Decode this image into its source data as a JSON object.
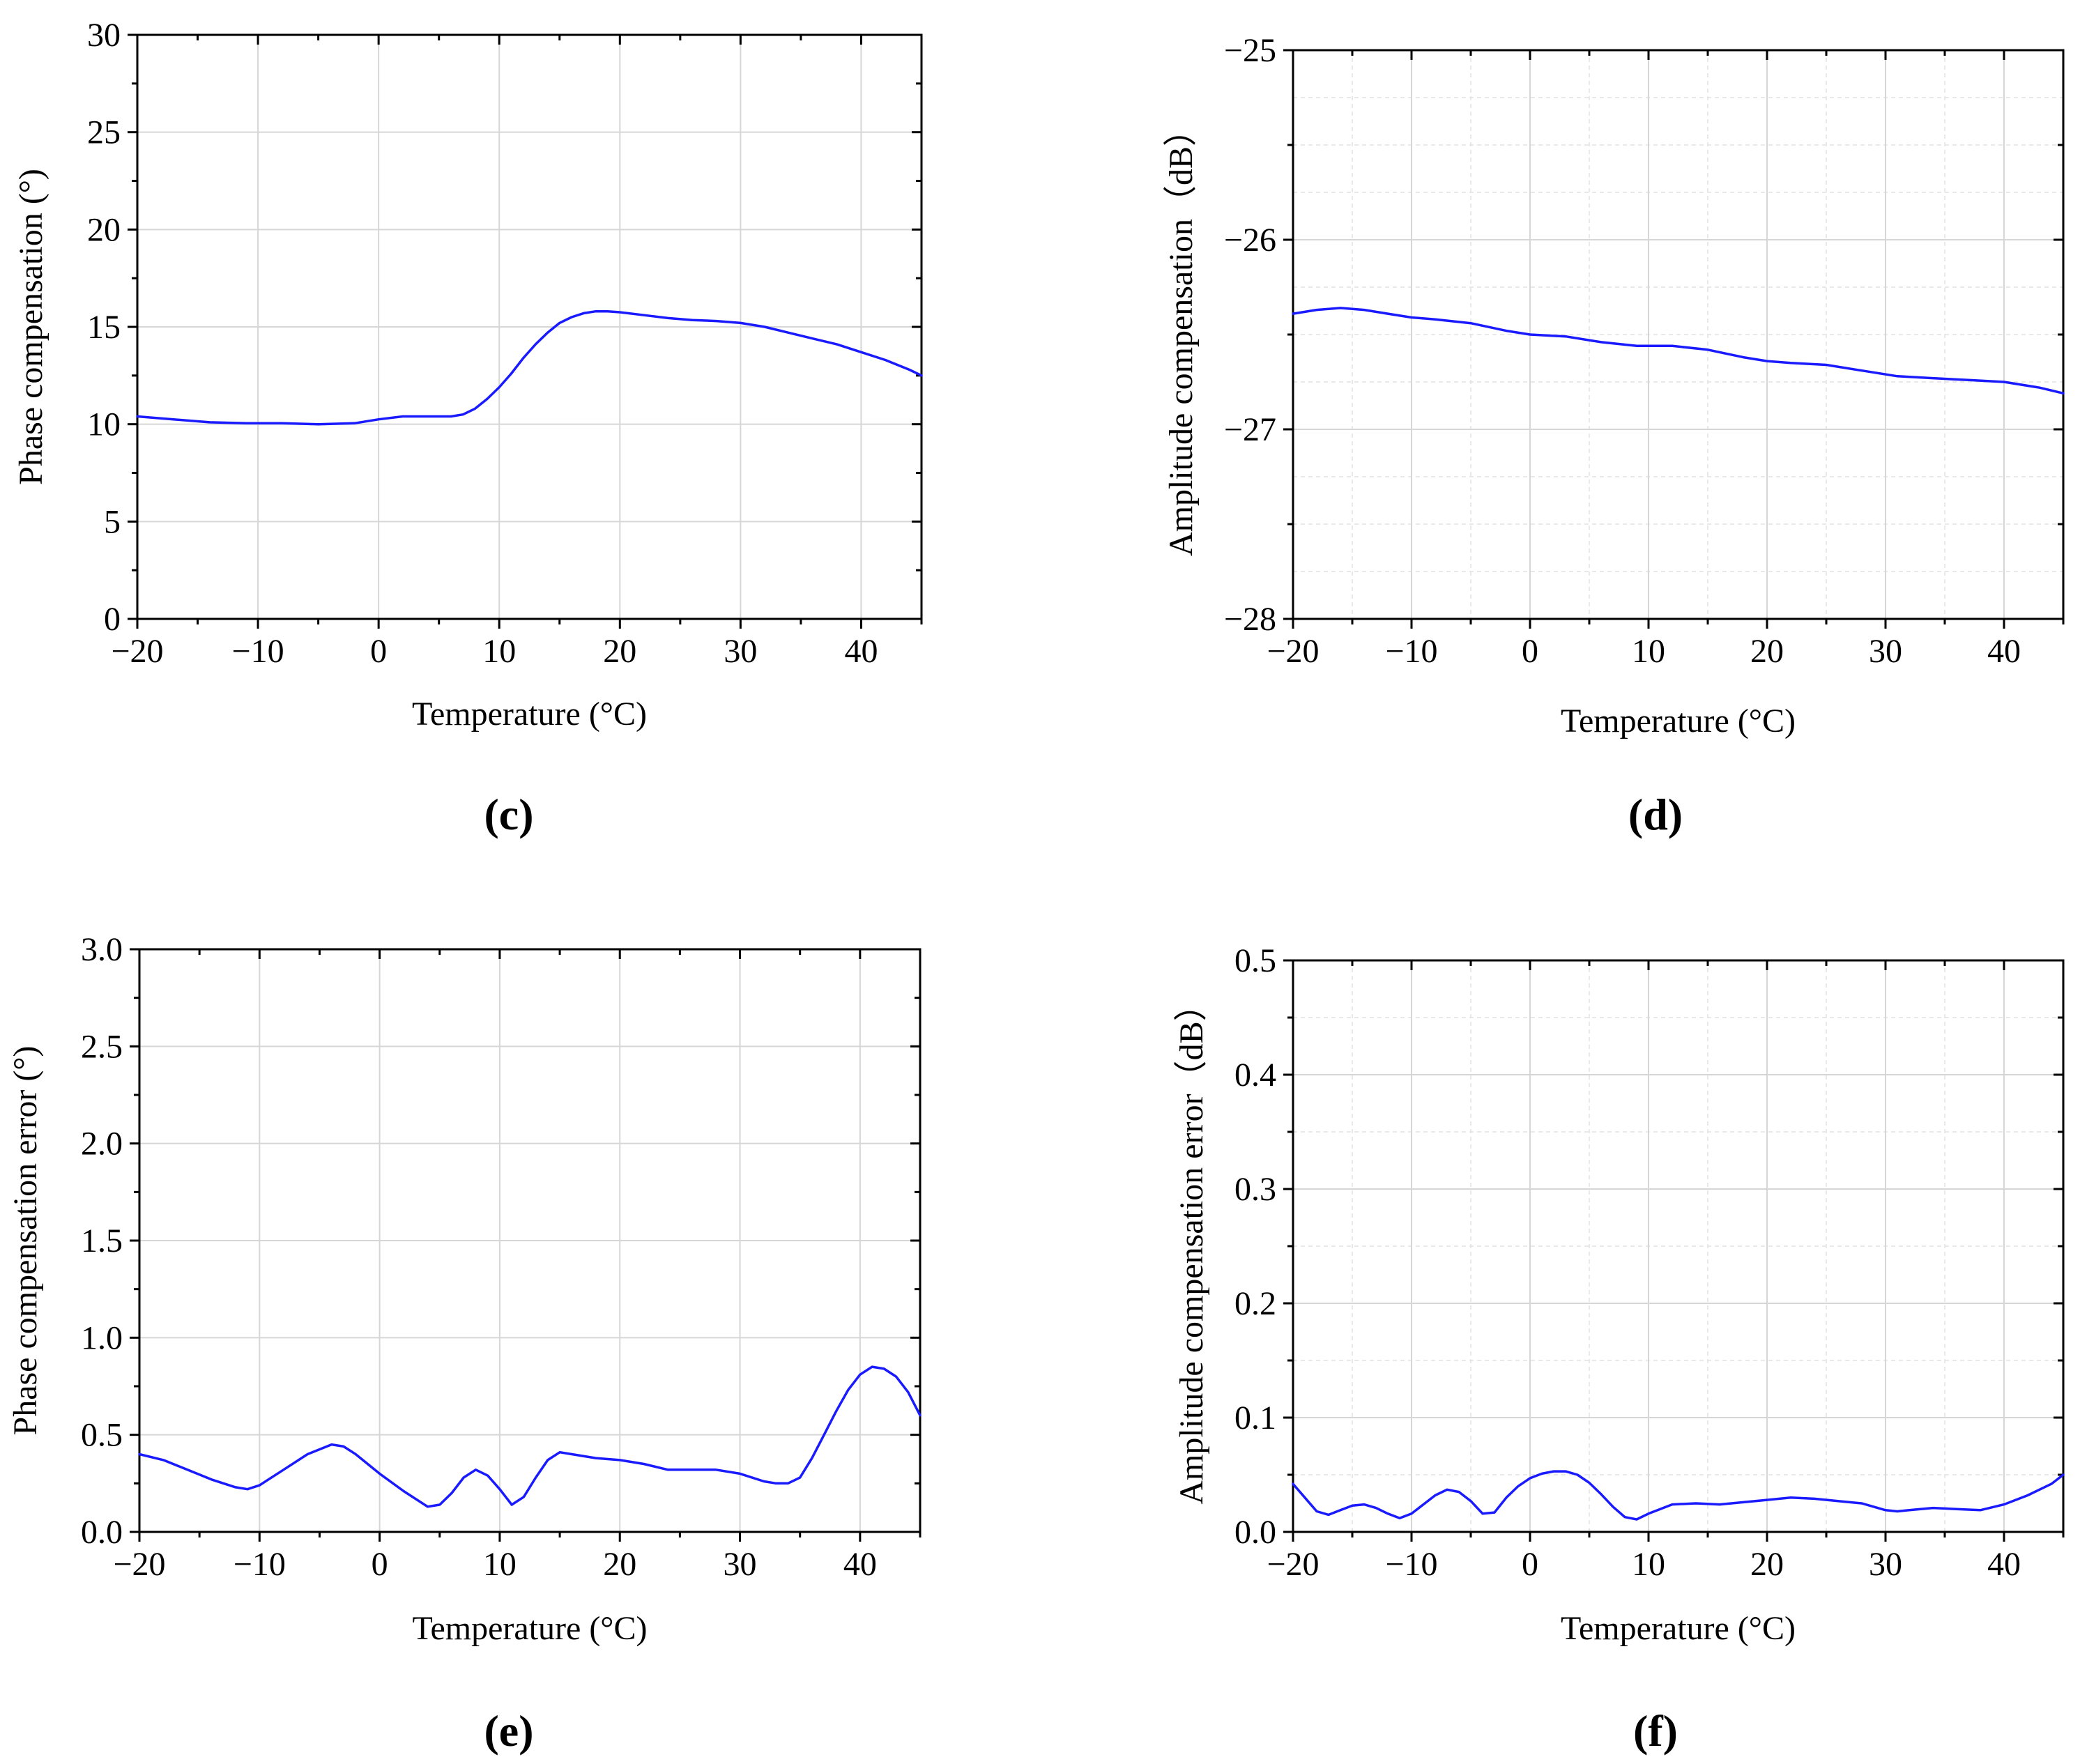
{
  "colors": {
    "series": "#1a1aff",
    "axis": "#000000"
  },
  "chart_data": [
    {
      "id": "c",
      "type": "line",
      "panel_label": "(c)",
      "title": "",
      "xlabel": "Temperature (°C)",
      "ylabel": "Phase compensation (°)",
      "xlim": [
        -20,
        45
      ],
      "ylim": [
        0,
        30
      ],
      "xticks": [
        -20,
        -10,
        0,
        10,
        20,
        30,
        40
      ],
      "xtick_labels": [
        "−20",
        "−10",
        "0",
        "10",
        "20",
        "30",
        "40"
      ],
      "yticks": [
        0,
        5,
        10,
        15,
        20,
        25,
        30
      ],
      "ytick_labels": [
        "0",
        "5",
        "10",
        "15",
        "20",
        "25",
        "30"
      ],
      "grid": true,
      "minor_grid": false,
      "series": [
        {
          "name": "Phase compensation",
          "x": [
            -20,
            -17,
            -14,
            -11,
            -8,
            -5,
            -2,
            0,
            2,
            4,
            6,
            7,
            8,
            9,
            10,
            11,
            12,
            13,
            14,
            15,
            16,
            17,
            18,
            19,
            20,
            22,
            24,
            26,
            28,
            30,
            32,
            34,
            36,
            38,
            40,
            42,
            44,
            45
          ],
          "y": [
            10.4,
            10.25,
            10.1,
            10.05,
            10.05,
            10.0,
            10.05,
            10.25,
            10.4,
            10.4,
            10.4,
            10.5,
            10.8,
            11.3,
            11.9,
            12.6,
            13.4,
            14.1,
            14.7,
            15.2,
            15.5,
            15.7,
            15.8,
            15.8,
            15.75,
            15.6,
            15.45,
            15.35,
            15.3,
            15.2,
            15.0,
            14.7,
            14.4,
            14.1,
            13.7,
            13.3,
            12.8,
            12.5
          ]
        }
      ]
    },
    {
      "id": "d",
      "type": "line",
      "panel_label": "(d)",
      "title": "",
      "xlabel": "Temperature (°C)",
      "ylabel": "Amplitude compensation（dB）",
      "xlim": [
        -20,
        45
      ],
      "ylim": [
        -28,
        -25
      ],
      "xticks": [
        -20,
        -10,
        0,
        10,
        20,
        30,
        40
      ],
      "xtick_labels": [
        "−20",
        "−10",
        "0",
        "10",
        "20",
        "30",
        "40"
      ],
      "yticks": [
        -28,
        -27,
        -26,
        -25
      ],
      "ytick_labels": [
        "−28",
        "−27",
        "−26",
        "−25"
      ],
      "grid": true,
      "minor_grid": true,
      "series": [
        {
          "name": "Amplitude compensation",
          "x": [
            -20,
            -18,
            -16,
            -14,
            -12,
            -10,
            -8,
            -5,
            -2,
            0,
            3,
            6,
            9,
            12,
            15,
            18,
            20,
            22,
            25,
            28,
            31,
            34,
            37,
            40,
            43,
            45
          ],
          "y": [
            -26.39,
            -26.37,
            -26.36,
            -26.37,
            -26.39,
            -26.41,
            -26.42,
            -26.44,
            -26.48,
            -26.5,
            -26.51,
            -26.54,
            -26.56,
            -26.56,
            -26.58,
            -26.62,
            -26.64,
            -26.65,
            -26.66,
            -26.69,
            -26.72,
            -26.73,
            -26.74,
            -26.75,
            -26.78,
            -26.81
          ]
        }
      ]
    },
    {
      "id": "e",
      "type": "line",
      "panel_label": "(e)",
      "title": "",
      "xlabel": "Temperature (°C)",
      "ylabel": "Phase compensation error (°)",
      "xlim": [
        -20,
        45
      ],
      "ylim": [
        0,
        3
      ],
      "xticks": [
        -20,
        -10,
        0,
        10,
        20,
        30,
        40
      ],
      "xtick_labels": [
        "−20",
        "−10",
        "0",
        "10",
        "20",
        "30",
        "40"
      ],
      "yticks": [
        0,
        0.5,
        1,
        1.5,
        2,
        2.5,
        3
      ],
      "ytick_labels": [
        "0.0",
        "0.5",
        "1.0",
        "1.5",
        "2.0",
        "2.5",
        "3.0"
      ],
      "grid": true,
      "minor_grid": false,
      "series": [
        {
          "name": "Phase compensation error",
          "x": [
            -20,
            -18,
            -16,
            -14,
            -12,
            -11,
            -10,
            -8,
            -6,
            -4,
            -3,
            -2,
            0,
            2,
            4,
            5,
            6,
            7,
            8,
            9,
            10,
            11,
            12,
            13,
            14,
            15,
            16,
            18,
            20,
            22,
            24,
            26,
            28,
            30,
            32,
            33,
            34,
            35,
            36,
            37,
            38,
            39,
            40,
            41,
            42,
            43,
            44,
            45
          ],
          "y": [
            0.4,
            0.37,
            0.32,
            0.27,
            0.23,
            0.22,
            0.24,
            0.32,
            0.4,
            0.45,
            0.44,
            0.4,
            0.3,
            0.21,
            0.13,
            0.14,
            0.2,
            0.28,
            0.32,
            0.29,
            0.22,
            0.14,
            0.18,
            0.28,
            0.37,
            0.41,
            0.4,
            0.38,
            0.37,
            0.35,
            0.32,
            0.32,
            0.32,
            0.3,
            0.26,
            0.25,
            0.25,
            0.28,
            0.38,
            0.5,
            0.62,
            0.73,
            0.81,
            0.85,
            0.84,
            0.8,
            0.72,
            0.6
          ]
        }
      ]
    },
    {
      "id": "f",
      "type": "line",
      "panel_label": "(f)",
      "title": "",
      "xlabel": "Temperature (°C)",
      "ylabel": "Amplitude compensation error（dB）",
      "xlim": [
        -20,
        45
      ],
      "ylim": [
        0,
        0.5
      ],
      "xticks": [
        -20,
        -10,
        0,
        10,
        20,
        30,
        40
      ],
      "xtick_labels": [
        "−20",
        "−10",
        "0",
        "10",
        "20",
        "30",
        "40"
      ],
      "yticks": [
        0,
        0.1,
        0.2,
        0.3,
        0.4,
        0.5
      ],
      "ytick_labels": [
        "0.0",
        "0.1",
        "0.2",
        "0.3",
        "0.4",
        "0.5"
      ],
      "grid": true,
      "minor_grid": true,
      "series": [
        {
          "name": "Amplitude compensation error",
          "x": [
            -20,
            -19,
            -18,
            -17,
            -16,
            -15,
            -14,
            -13,
            -12,
            -11,
            -10,
            -9,
            -8,
            -7,
            -6,
            -5,
            -4,
            -3,
            -2,
            -1,
            0,
            1,
            2,
            3,
            4,
            5,
            6,
            7,
            8,
            9,
            10,
            12,
            14,
            16,
            18,
            20,
            22,
            24,
            26,
            28,
            30,
            31,
            32,
            34,
            36,
            38,
            40,
            42,
            44,
            45
          ],
          "y": [
            0.042,
            0.03,
            0.018,
            0.015,
            0.019,
            0.023,
            0.024,
            0.021,
            0.016,
            0.012,
            0.016,
            0.024,
            0.032,
            0.037,
            0.035,
            0.027,
            0.016,
            0.017,
            0.03,
            0.04,
            0.047,
            0.051,
            0.053,
            0.053,
            0.05,
            0.043,
            0.033,
            0.022,
            0.013,
            0.011,
            0.016,
            0.024,
            0.025,
            0.024,
            0.026,
            0.028,
            0.03,
            0.029,
            0.027,
            0.025,
            0.019,
            0.018,
            0.019,
            0.021,
            0.02,
            0.019,
            0.024,
            0.032,
            0.042,
            0.05
          ]
        }
      ]
    }
  ]
}
